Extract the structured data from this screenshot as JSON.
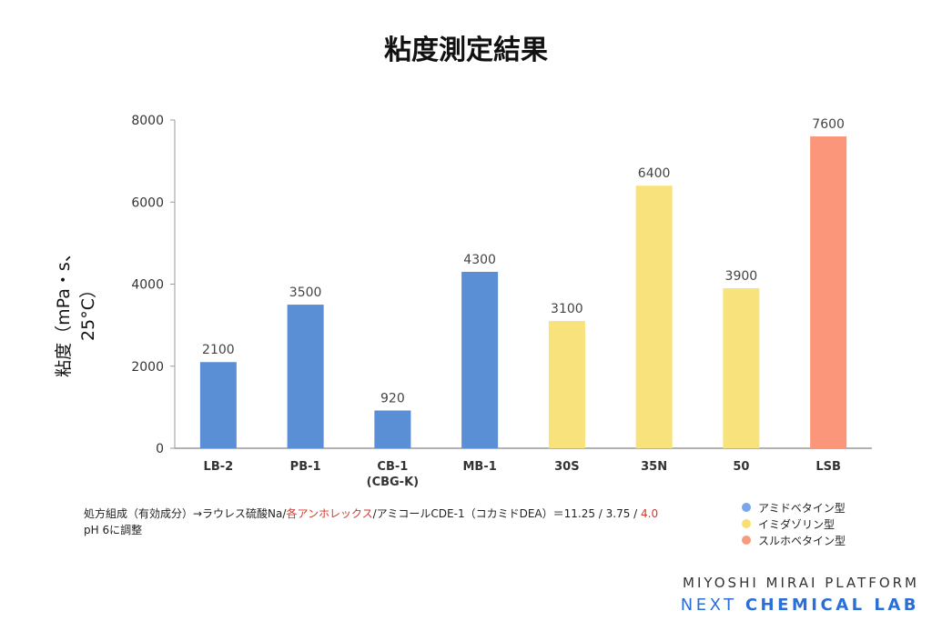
{
  "chart_data": {
    "type": "bar",
    "title": "粘度測定結果",
    "ylabel": "粘度（mPa・s、25°C）",
    "xlabel": "",
    "categories": [
      "LB-2",
      "PB-1",
      "CB-1\n(CBG-K)",
      "MB-1",
      "30S",
      "35N",
      "50",
      "LSB"
    ],
    "values": [
      2100,
      3500,
      920,
      4300,
      3100,
      6400,
      3900,
      7600
    ],
    "groups": [
      "アミドベタイン型",
      "アミドベタイン型",
      "アミドベタイン型",
      "アミドベタイン型",
      "イミダゾリン型",
      "イミダゾリン型",
      "イミダゾリン型",
      "スルホベタイン型"
    ],
    "ylim": [
      0,
      8000
    ],
    "yticks": [
      0,
      2000,
      4000,
      6000,
      8000
    ],
    "grid": false,
    "legend": {
      "placement": "bottom-right",
      "entries": [
        {
          "name": "アミドベタイン型",
          "color": "#7ba7ea"
        },
        {
          "name": "イミダゾリン型",
          "color": "#f9de74"
        },
        {
          "name": "スルホベタイン型",
          "color": "#f89a7e"
        }
      ]
    },
    "bar_colors": {
      "アミドベタイン型": "#5a8fd6",
      "イミダゾリン型": "#f8e27c",
      "スルホベタイン型": "#fb967a"
    }
  },
  "note": {
    "line1_a": "処方組成（有効成分）→ラウレス硫酸Na/",
    "line1_red": "各アンホレックス",
    "line1_b": "/アミコールCDE-1（コカミドDEA）＝11.25 / 3.75 / ",
    "line1_red2": "4.0",
    "line2": "pH 6に調整"
  },
  "brand": {
    "line1": "MIYOSHI MIRAI PLATFORM",
    "line2_a": "NEXT ",
    "line2_b": "CHEMICAL LAB"
  }
}
